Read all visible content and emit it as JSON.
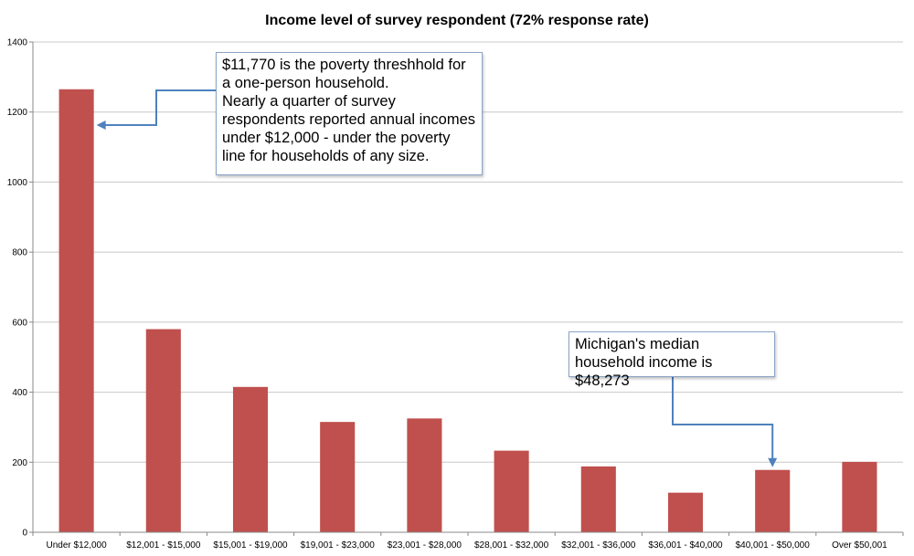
{
  "chart_data": {
    "type": "bar",
    "title": "Income level of survey respondent (72% response rate)",
    "xlabel": "",
    "ylabel": "",
    "ylim": [
      0,
      1400
    ],
    "yticks": [
      "0",
      "200",
      "400",
      "600",
      "800",
      "1000",
      "1200",
      "1400"
    ],
    "grid": true,
    "legend": "none",
    "categories": [
      "Under $12,000",
      "$12,001 - $15,000",
      "$15,001 - $19,000",
      "$19,001 - $23,000",
      "$23,001 - $28,000",
      "$28,001 - $32,000",
      "$32,001 - $36,000",
      "$36,001 - $40,000",
      "$40,001 - $50,000",
      "Over $50,001"
    ],
    "values": [
      1265,
      580,
      415,
      315,
      325,
      233,
      188,
      113,
      178,
      201
    ],
    "bar_color": "#c0504d",
    "annotations": [
      {
        "lines": [
          "$11,770 is the poverty threshhold for a one-person household.",
          "Nearly a quarter of survey respondents reported annual incomes under $12,000 - under the poverty line for households of any size."
        ],
        "points_to": "Under $12,000"
      },
      {
        "lines": [
          "Michigan's median household income is $48,273"
        ],
        "points_to": "$40,001 - $50,000"
      }
    ]
  }
}
